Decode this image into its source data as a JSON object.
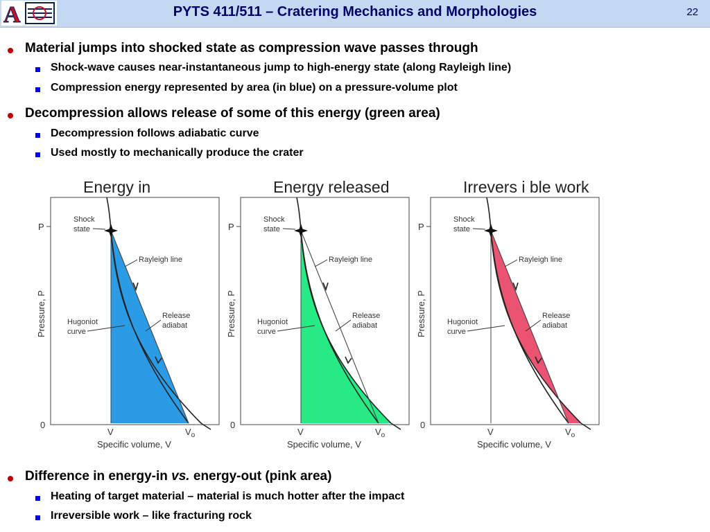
{
  "header": {
    "title": "PYTS 411/511 – Cratering Mechanics and Morphologies",
    "slide_number": "22",
    "logo_text": "A",
    "colors": {
      "band": "#c4d8f2",
      "title": "#00006b",
      "logo_red": "#c8102e",
      "logo_navy": "#0c234b"
    }
  },
  "bullets_top": [
    {
      "text": "Material jumps into shocked state as compression wave passes through"
    },
    {
      "text": "Shock-wave causes near-instantaneous jump to high-energy state (along Rayleigh line)"
    },
    {
      "text": "Compression energy represented by area (in blue) on a pressure-volume plot"
    },
    {
      "text": "Decompression allows release of some of this energy (green area)"
    },
    {
      "text": "Decompression follows adiabatic curve"
    },
    {
      "text": "Used mostly to mechanically produce the crater"
    }
  ],
  "bullets_bottom": [
    {
      "text_before": "Difference in energy-in ",
      "text_italic": "vs.",
      "text_after": " energy-out (pink area)"
    },
    {
      "text": "Heating of target material – material is much hotter after the impact"
    },
    {
      "text": "Irreversible work – like fracturing rock"
    }
  ],
  "figures": [
    {
      "title": "Energy in",
      "fill": "blue",
      "fill_color": "#2b9be6"
    },
    {
      "title": "Energy released",
      "fill": "green",
      "fill_color": "#27ea85"
    },
    {
      "title": "Irrevers i ble work",
      "fill": "pink",
      "fill_color": "#ea5472"
    }
  ],
  "plot_labels": {
    "p": "P",
    "zero": "0",
    "v": "V",
    "v0": "V",
    "v0_sub": "o",
    "ylabel": "Pressure, P",
    "xlabel": "Specific volume, V",
    "shock_state": [
      "Shock",
      "state"
    ],
    "rayleigh": "Rayleigh line",
    "hugoniot": [
      "Hugoniot",
      "curve"
    ],
    "release": [
      "Release",
      "adiabat"
    ]
  }
}
